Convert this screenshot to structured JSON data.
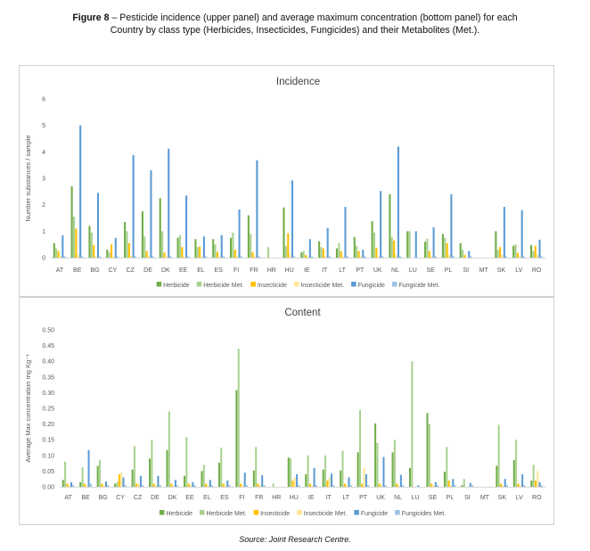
{
  "figure": {
    "label": "Figure 8",
    "caption_line1": " – Pesticide incidence (upper panel) and average maximum concentration (bottom panel) for each",
    "caption_line2": "Country by class type (Herbicides, Insecticides, Fungicides) and their Metabolites (Met.).",
    "source": "Source: Joint Research Centre."
  },
  "colors": {
    "herbicide": "#70ad47",
    "herbicide_met": "#a9d18e",
    "insecticide": "#ffc000",
    "insecticide_met": "#ffe699",
    "fungicide": "#5b9bd5",
    "fungicide_met": "#9dc3e6"
  },
  "chart_data": [
    {
      "type": "bar",
      "title": "Incidence",
      "ylabel": "Number substances / sample",
      "xlabel": "",
      "ylim": [
        0,
        6
      ],
      "yticks": [
        "0",
        "1",
        "2",
        "3",
        "4",
        "5",
        "6"
      ],
      "grid": false,
      "legend": "bottom",
      "categories": [
        "AT",
        "BE",
        "BG",
        "CY",
        "CZ",
        "DE",
        "DK",
        "EE",
        "EL",
        "ES",
        "FI",
        "FR",
        "HR",
        "HU",
        "IE",
        "IT",
        "LT",
        "PT",
        "UK",
        "NL",
        "LU",
        "SE",
        "PL",
        "SI",
        "MT",
        "SK",
        "LV",
        "RO"
      ],
      "series": [
        {
          "name": "Herbicide",
          "values": [
            0.55,
            2.7,
            1.2,
            0.3,
            1.35,
            1.75,
            2.25,
            0.75,
            0.7,
            0.7,
            0.75,
            1.6,
            0,
            1.9,
            0.2,
            0.62,
            0.35,
            0.78,
            1.38,
            2.4,
            1.0,
            0.6,
            0.9,
            0.55,
            0,
            1.0,
            0.45,
            0.48
          ]
        },
        {
          "name": "Herbicide Met.",
          "values": [
            0.35,
            1.55,
            0.95,
            0.2,
            1.0,
            0.8,
            1.0,
            0.85,
            0.4,
            0.5,
            0.95,
            0.9,
            0.4,
            0.45,
            0.25,
            0.4,
            0.55,
            0.45,
            0.95,
            0.78,
            1.0,
            0.72,
            0.75,
            0.3,
            0,
            0.3,
            0.5,
            0.25
          ]
        },
        {
          "name": "Insecticide",
          "values": [
            0.25,
            1.1,
            0.48,
            0.5,
            0.55,
            0.25,
            0.2,
            0.4,
            0.42,
            0.22,
            0.3,
            0.2,
            0,
            0.92,
            0.1,
            0.35,
            0.25,
            0.25,
            0.38,
            0.65,
            0,
            0.25,
            0.55,
            0.1,
            0,
            0.4,
            0.18,
            0.45
          ]
        },
        {
          "name": "Insecticide Met.",
          "values": [
            0.05,
            0.1,
            0.05,
            0.05,
            0.08,
            0.05,
            0.05,
            0.05,
            0.05,
            0.05,
            0.05,
            0.05,
            0,
            0.1,
            0.05,
            0.05,
            0.05,
            0.05,
            0.05,
            0.1,
            0,
            0.05,
            0.1,
            0.02,
            0,
            0.1,
            0.05,
            0.1
          ]
        },
        {
          "name": "Fungicide",
          "values": [
            0.85,
            5.0,
            2.45,
            0.75,
            3.88,
            3.3,
            4.12,
            2.35,
            0.8,
            0.85,
            1.82,
            3.68,
            0,
            2.92,
            0.7,
            1.12,
            1.92,
            0.3,
            2.52,
            4.2,
            1.0,
            1.15,
            2.4,
            0.25,
            0,
            1.92,
            1.8,
            0.68
          ]
        },
        {
          "name": "Fungicide Met.",
          "values": [
            0.05,
            0.05,
            0.05,
            0.05,
            0.05,
            0.05,
            0.05,
            0.05,
            0.05,
            0.05,
            0.05,
            0.05,
            0,
            0.05,
            0.05,
            0.05,
            0.05,
            0.05,
            0.05,
            0.05,
            0,
            0.05,
            0.05,
            0.05,
            0,
            0.05,
            0.05,
            0.05
          ]
        }
      ]
    },
    {
      "type": "bar",
      "title": "Content",
      "ylabel": "Average Max concentration mg Kg⁻¹",
      "xlabel": "",
      "ylim": [
        0,
        0.5
      ],
      "yticks": [
        "0.00",
        "0.05",
        "0.10",
        "0.15",
        "0.20",
        "0.25",
        "0.30",
        "0.35",
        "0.40",
        "0.45",
        "0.50"
      ],
      "grid": false,
      "legend": "bottom",
      "categories": [
        "AT",
        "BE",
        "BG",
        "CY",
        "CZ",
        "DE",
        "DK",
        "EE",
        "EL",
        "ES",
        "FI",
        "FR",
        "HR",
        "HU",
        "IE",
        "IT",
        "LT",
        "PT",
        "UK",
        "NL",
        "LU",
        "SE",
        "PL",
        "SI",
        "MT",
        "SK",
        "LV",
        "RO"
      ],
      "series": [
        {
          "name": "Herbicide",
          "values": [
            0.022,
            0.015,
            0.067,
            0.01,
            0.055,
            0.09,
            0.117,
            0.035,
            0.05,
            0.077,
            0.308,
            0.052,
            0,
            0.093,
            0.04,
            0.055,
            0.052,
            0.11,
            0.202,
            0.11,
            0.06,
            0.235,
            0.048,
            0.005,
            0,
            0.067,
            0.085,
            0.02
          ]
        },
        {
          "name": "Herbicide Met.",
          "values": [
            0.08,
            0.062,
            0.085,
            0.015,
            0.13,
            0.15,
            0.24,
            0.158,
            0.07,
            0.125,
            0.44,
            0.127,
            0.01,
            0.09,
            0.1,
            0.1,
            0.115,
            0.245,
            0.14,
            0.15,
            0.4,
            0.2,
            0.127,
            0.025,
            0,
            0.198,
            0.15,
            0.07
          ]
        },
        {
          "name": "Insecticide",
          "values": [
            0.01,
            0.01,
            0.01,
            0.04,
            0.01,
            0.01,
            0.01,
            0.01,
            0.01,
            0.01,
            0.01,
            0.01,
            0,
            0.02,
            0.01,
            0.02,
            0.01,
            0.01,
            0.01,
            0.01,
            0,
            0.01,
            0.02,
            0,
            0,
            0.01,
            0.01,
            0.02
          ]
        },
        {
          "name": "Insecticide Met.",
          "values": [
            0.005,
            0.005,
            0.005,
            0.045,
            0.01,
            0.005,
            0.005,
            0.005,
            0.005,
            0.005,
            0.005,
            0.005,
            0,
            0.03,
            0.005,
            0.03,
            0.005,
            0.06,
            0.005,
            0.005,
            0,
            0.005,
            0.005,
            0,
            0,
            0.005,
            0.005,
            0.05
          ]
        },
        {
          "name": "Fungicide",
          "values": [
            0.015,
            0.117,
            0.017,
            0.03,
            0.035,
            0.035,
            0.022,
            0.015,
            0.022,
            0.02,
            0.045,
            0.037,
            0,
            0.04,
            0.06,
            0.042,
            0.03,
            0.04,
            0.095,
            0.038,
            0.005,
            0.015,
            0.025,
            0.012,
            0,
            0.025,
            0.04,
            0.015
          ]
        },
        {
          "name": "Fungicides Met.",
          "values": [
            0.005,
            0.01,
            0.005,
            0.005,
            0.005,
            0.005,
            0.005,
            0.005,
            0.005,
            0.005,
            0.005,
            0.005,
            0,
            0.005,
            0.005,
            0.005,
            0.005,
            0.005,
            0.005,
            0.005,
            0,
            0.005,
            0.005,
            0.005,
            0,
            0.005,
            0.005,
            0.005
          ]
        }
      ]
    }
  ]
}
